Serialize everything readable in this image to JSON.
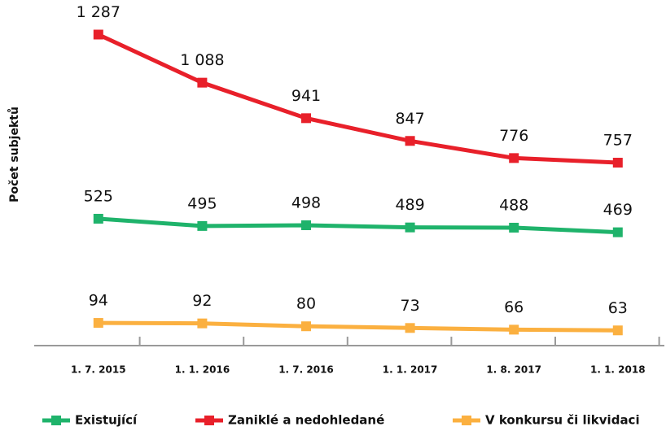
{
  "chart_data": {
    "type": "line",
    "y_label": "Počet subjektů",
    "categories": [
      "1. 7. 2015",
      "1. 1. 2016",
      "1. 7. 2016",
      "1. 1. 2017",
      "1. 8. 2017",
      "1. 1. 2018"
    ],
    "series": [
      {
        "name": "Existující",
        "color": "#1fb36b",
        "values": [
          525,
          495,
          498,
          489,
          488,
          469
        ]
      },
      {
        "name": "Zaniklé a nedohledané",
        "color": "#e8202a",
        "values": [
          1287,
          1088,
          941,
          847,
          776,
          757
        ],
        "value_labels": [
          "1 287",
          "1 088",
          "941",
          "847",
          "776",
          "757"
        ]
      },
      {
        "name": "V konkursu či likvidaci",
        "color": "#fbb040",
        "values": [
          94,
          92,
          80,
          73,
          66,
          63
        ]
      }
    ],
    "ylim": [
      0,
      1430
    ],
    "legend": "bottom"
  }
}
